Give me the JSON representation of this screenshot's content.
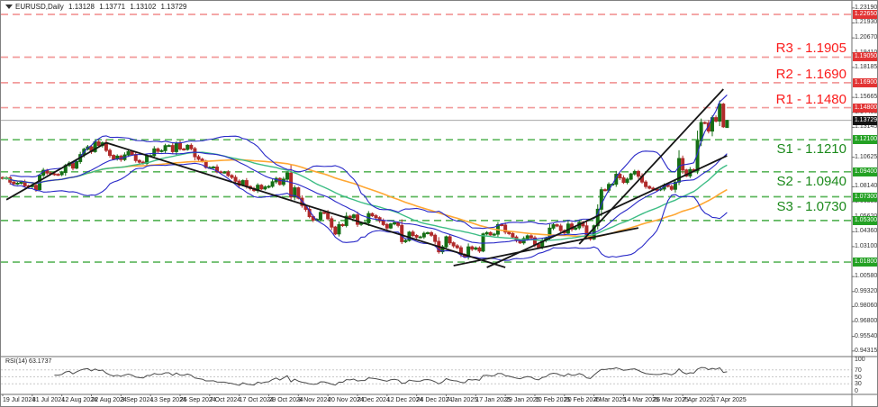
{
  "window": {
    "symbol": "EURUSD,Daily",
    "open": "1.13128",
    "high": "1.13771",
    "low": "1.13102",
    "close": "1.13729"
  },
  "colors": {
    "background": "#ffffff",
    "border": "#808080",
    "bull": "#156e15",
    "bear": "#b02a2a",
    "bollinger": "#2929c8",
    "ma_fast": "#3dbd85",
    "ma_slow": "#ffa733",
    "support_line": "#5db65d",
    "resistance_line": "#f29b9b",
    "support_label": "#1c8a1c",
    "resistance_label": "#fb1b1b",
    "tag_support_bg": "#23a123",
    "tag_resistance_bg": "#e23434",
    "tag_current_bg": "#141414",
    "trendline": "#151515",
    "current_price_line": "#9a9a9a",
    "rsi_line": "#4a4a4a",
    "rsi_grid": "#c8c8c8",
    "frame": "#6e6e6e"
  },
  "levels": {
    "resistance": [
      {
        "name": "R3",
        "label": "R3 - 1.1905",
        "price": 1.1905
      },
      {
        "name": "R2",
        "label": "R2 - 1.1690",
        "price": 1.169
      },
      {
        "name": "R1",
        "label": "R1 - 1.1480",
        "price": 1.148
      }
    ],
    "support": [
      {
        "name": "S1",
        "label": "S1 - 1.1210",
        "price": 1.121
      },
      {
        "name": "S2",
        "label": "S2 - 1.0940",
        "price": 1.094
      },
      {
        "name": "S3",
        "label": "S3 - 1.0730",
        "price": 1.073
      }
    ]
  },
  "price_axis": {
    "ticks": [
      "1.23190",
      "1.21930",
      "1.20670",
      "1.19410",
      "1.18185",
      "1.15665",
      "1.14405",
      "1.13145",
      "1.10625",
      "1.08140",
      "1.06880",
      "1.05620",
      "1.04360",
      "1.03100",
      "1.00580",
      "0.99320",
      "0.98060",
      "0.96800",
      "0.95540",
      "0.94315"
    ],
    "tags": [
      {
        "text": "1.22650",
        "kind": "resistance"
      },
      {
        "text": "1.19050",
        "kind": "resistance"
      },
      {
        "text": "1.16900",
        "kind": "resistance"
      },
      {
        "text": "1.14800",
        "kind": "resistance"
      },
      {
        "text": "1.13729",
        "kind": "current"
      },
      {
        "text": "1.12100",
        "kind": "support"
      },
      {
        "text": "1.09400",
        "kind": "support"
      },
      {
        "text": "1.07300",
        "kind": "support"
      },
      {
        "text": "1.05300",
        "kind": "support"
      },
      {
        "text": "1.01800",
        "kind": "support"
      }
    ]
  },
  "rsi_pane": {
    "label": "RSI(14) 63.1737",
    "period": 14,
    "value": 63.1737,
    "scale": [
      "100",
      "70",
      "50",
      "30",
      "0"
    ],
    "dashed_levels": [
      70,
      50,
      30
    ]
  },
  "chart_data": {
    "type": "candlestick",
    "symbol": "EURUSD",
    "timeframe": "Daily",
    "title": "EURUSD,Daily 1.13128 1.13771 1.13102 1.13729",
    "price_range": {
      "top": 1.2318,
      "bottom": 0.9385
    },
    "x_axis_labels": [
      "19 Jul 2024",
      "31 Jul 2024",
      "12 Aug 2024",
      "22 Aug 2024",
      "3 Sep 2024",
      "13 Sep 2024",
      "25 Sep 2024",
      "7 Oct 2024",
      "17 Oct 2024",
      "29 Oct 2024",
      "8 Nov 2024",
      "20 Nov 2024",
      "2 Dec 2024",
      "12 Dec 2024",
      "24 Dec 2024",
      "7 Jan 2025",
      "17 Jan 2025",
      "29 Jan 2025",
      "10 Feb 2025",
      "20 Feb 2025",
      "4 Mar 2025",
      "14 Mar 2025",
      "26 Mar 2025",
      "7 Apr 2025",
      "17 Apr 2025"
    ],
    "bars_per_x_label": 8,
    "last_candle": {
      "open": 1.13128,
      "high": 1.13771,
      "low": 1.13102,
      "close": 1.13729
    },
    "closes": [
      1.0884,
      1.089,
      1.0853,
      1.084,
      1.0844,
      1.0856,
      1.0822,
      1.0815,
      1.0826,
      1.079,
      1.0911,
      1.0953,
      1.093,
      1.0923,
      1.0918,
      1.0916,
      1.0934,
      1.0993,
      1.1013,
      1.0971,
      1.1026,
      1.1085,
      1.113,
      1.115,
      1.111,
      1.1192,
      1.1161,
      1.1184,
      1.112,
      1.1078,
      1.1048,
      1.1072,
      1.1043,
      1.1082,
      1.111,
      1.1085,
      1.1035,
      1.1021,
      1.1011,
      1.1074,
      1.1076,
      1.1133,
      1.1113,
      1.1118,
      1.116,
      1.1161,
      1.111,
      1.118,
      1.1132,
      1.1128,
      1.1163,
      1.1135,
      1.1067,
      1.1046,
      1.1031,
      1.0976,
      1.0977,
      1.098,
      1.094,
      1.0936,
      1.0937,
      1.0909,
      1.0893,
      1.0861,
      1.0827,
      1.0866,
      1.0816,
      1.0799,
      1.0782,
      1.0827,
      1.0796,
      1.0812,
      1.0818,
      1.0856,
      1.0884,
      1.0834,
      1.0878,
      1.093,
      1.0728,
      1.0805,
      1.0718,
      1.0657,
      1.0624,
      1.0563,
      1.0533,
      1.054,
      1.0598,
      1.0594,
      1.0545,
      1.0475,
      1.0417,
      1.0495,
      1.0488,
      1.0566,
      1.0554,
      1.0577,
      1.0498,
      1.0509,
      1.0511,
      1.0588,
      1.057,
      1.0554,
      1.0528,
      1.0496,
      1.0467,
      1.0501,
      1.0511,
      1.0489,
      1.0352,
      1.0362,
      1.0432,
      1.0404,
      1.039,
      1.0392,
      1.0422,
      1.0427,
      1.0406,
      1.0354,
      1.0267,
      1.0308,
      1.0393,
      1.0342,
      1.0317,
      1.0301,
      1.0244,
      1.0224,
      1.0308,
      1.0289,
      1.0299,
      1.0273,
      1.0417,
      1.0428,
      1.0409,
      1.0415,
      1.0495,
      1.0491,
      1.0433,
      1.042,
      1.0391,
      1.0362,
      1.0342,
      1.0378,
      1.0401,
      1.0384,
      1.0328,
      1.0306,
      1.0362,
      1.0383,
      1.0466,
      1.0494,
      1.0484,
      1.0445,
      1.0425,
      1.05,
      1.0457,
      1.0468,
      1.0514,
      1.0485,
      1.0398,
      1.0375,
      1.0486,
      1.0625,
      1.0789,
      1.0785,
      1.0834,
      1.0836,
      1.0919,
      1.0889,
      1.0851,
      1.0878,
      1.0922,
      1.0943,
      1.0903,
      1.0854,
      1.0816,
      1.0802,
      1.0793,
      1.0788,
      1.0795,
      1.0828,
      1.0817,
      1.0793,
      1.0853,
      1.1052,
      1.0955,
      1.0905,
      1.0958,
      1.095,
      1.1201,
      1.1355,
      1.135,
      1.1283,
      1.1396,
      1.1367,
      1.151,
      1.1319,
      1.1373
    ],
    "support_lines": [
      1.121,
      1.094,
      1.073,
      1.053,
      1.018
    ],
    "resistance_lines": [
      1.2265,
      1.1905,
      1.169,
      1.148
    ],
    "current_price": 1.13729,
    "trendlines": [
      {
        "from": {
          "bar": 1,
          "price": 1.0705
        },
        "to": {
          "bar": 28,
          "price": 1.1185
        }
      },
      {
        "from": {
          "bar": 28,
          "price": 1.1185
        },
        "to": {
          "bar": 136,
          "price": 1.0135
        }
      },
      {
        "from": {
          "bar": 122,
          "price": 1.015
        },
        "to": {
          "bar": 172,
          "price": 1.0468
        }
      },
      {
        "from": {
          "bar": 131,
          "price": 1.0135
        },
        "to": {
          "bar": 196,
          "price": 1.1075
        }
      },
      {
        "from": {
          "bar": 156,
          "price": 1.0332
        },
        "to": {
          "bar": 195,
          "price": 1.1636
        }
      }
    ],
    "indicators": {
      "bollinger": {
        "period": 20,
        "deviation": 2
      },
      "ma_fast": {
        "type": "sma",
        "period": 34
      },
      "ma_slow": {
        "type": "sma",
        "period": 55
      },
      "rsi": {
        "period": 14,
        "value": 63.1737,
        "levels": [
          70,
          50,
          30
        ]
      }
    }
  }
}
